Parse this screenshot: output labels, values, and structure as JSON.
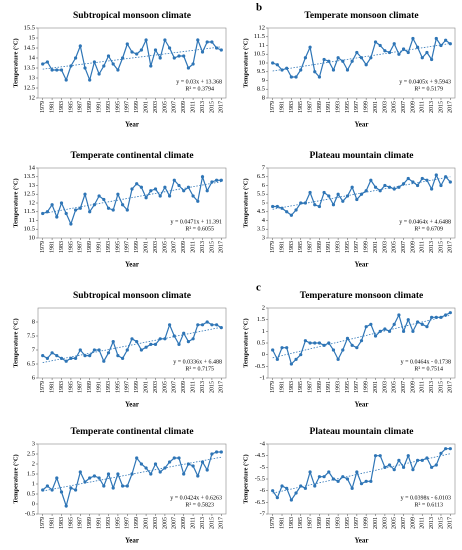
{
  "chart_data": [
    {
      "type": "line",
      "title": "Subtropical monsoon climate",
      "y_label": "Temperature (°C)",
      "x_label": "Year",
      "color": "#2e75b6",
      "x": [
        1979,
        1980,
        1981,
        1982,
        1983,
        1984,
        1985,
        1986,
        1987,
        1988,
        1989,
        1990,
        1991,
        1992,
        1993,
        1994,
        1995,
        1996,
        1997,
        1998,
        1999,
        2000,
        2001,
        2002,
        2003,
        2004,
        2005,
        2006,
        2007,
        2008,
        2009,
        2010,
        2011,
        2012,
        2013,
        2014,
        2015,
        2016,
        2017
      ],
      "values": [
        13.7,
        13.8,
        13.4,
        13.4,
        13.4,
        12.9,
        13.6,
        14.0,
        14.6,
        13.5,
        12.9,
        13.8,
        13.2,
        13.6,
        14.1,
        13.7,
        13.4,
        14.0,
        14.7,
        14.3,
        14.2,
        14.4,
        14.9,
        13.6,
        14.4,
        14.0,
        14.9,
        14.5,
        14.0,
        14.1,
        14.1,
        13.5,
        13.7,
        14.9,
        14.3,
        14.8,
        14.8,
        14.5,
        14.4
      ],
      "xlim": [
        1978,
        2018
      ],
      "xticks": [
        1979,
        1981,
        1983,
        1985,
        1987,
        1989,
        1991,
        1993,
        1995,
        1997,
        1999,
        2001,
        2003,
        2005,
        2007,
        2009,
        2011,
        2013,
        2015,
        2017
      ],
      "ylim": [
        12,
        15.5
      ],
      "yticks": [
        12,
        12.5,
        13,
        13.5,
        14,
        14.5,
        15,
        15.5
      ],
      "trend_equation": "y = 0.03x + 13.368",
      "r_squared": "R² = 0.3794"
    },
    {
      "type": "line",
      "panel_label": "b",
      "title": "Temperate monsoon climate",
      "y_label": "Temperature (°C)",
      "x_label": "Year",
      "color": "#2e75b6",
      "x": [
        1979,
        1980,
        1981,
        1982,
        1983,
        1984,
        1985,
        1986,
        1987,
        1988,
        1989,
        1990,
        1991,
        1992,
        1993,
        1994,
        1995,
        1996,
        1997,
        1998,
        1999,
        2000,
        2001,
        2002,
        2003,
        2004,
        2005,
        2006,
        2007,
        2008,
        2009,
        2010,
        2011,
        2012,
        2013,
        2014,
        2015,
        2016,
        2017
      ],
      "values": [
        10.0,
        9.9,
        9.6,
        9.7,
        9.2,
        9.2,
        9.6,
        10.3,
        10.9,
        9.5,
        9.2,
        10.2,
        10.1,
        9.6,
        10.3,
        10.1,
        9.6,
        10.1,
        10.6,
        10.3,
        9.9,
        10.3,
        11.2,
        11.0,
        10.7,
        10.6,
        11.1,
        10.5,
        10.8,
        10.6,
        11.4,
        10.9,
        10.3,
        10.6,
        10.2,
        11.4,
        11.0,
        11.3,
        11.1
      ],
      "xlim": [
        1978,
        2018
      ],
      "xticks": [
        1979,
        1981,
        1983,
        1985,
        1987,
        1989,
        1991,
        1993,
        1995,
        1997,
        1999,
        2001,
        2003,
        2005,
        2007,
        2009,
        2011,
        2013,
        2015,
        2017
      ],
      "ylim": [
        8,
        12
      ],
      "yticks": [
        8,
        8.5,
        9,
        9.5,
        10,
        10.5,
        11,
        11.5,
        12
      ],
      "trend_equation": "y = 0.0405x + 9.5943",
      "r_squared": "R² = 0.5179"
    },
    {
      "type": "line",
      "title": "Temperate continental climate",
      "y_label": "Temperature (°C)",
      "x_label": "Year",
      "color": "#2e75b6",
      "x": [
        1979,
        1980,
        1981,
        1982,
        1983,
        1984,
        1985,
        1986,
        1987,
        1988,
        1989,
        1990,
        1991,
        1992,
        1993,
        1994,
        1995,
        1996,
        1997,
        1998,
        1999,
        2000,
        2001,
        2002,
        2003,
        2004,
        2005,
        2006,
        2007,
        2008,
        2009,
        2010,
        2011,
        2012,
        2013,
        2014,
        2015,
        2016,
        2017
      ],
      "values": [
        11.4,
        11.5,
        11.9,
        11.2,
        12.0,
        11.4,
        10.8,
        11.6,
        11.7,
        12.5,
        11.5,
        11.9,
        12.4,
        12.2,
        11.7,
        11.6,
        12.5,
        11.9,
        11.6,
        12.8,
        13.1,
        12.9,
        12.3,
        12.7,
        12.8,
        12.4,
        12.9,
        12.4,
        13.3,
        13.0,
        12.7,
        12.9,
        12.4,
        12.1,
        13.5,
        12.7,
        13.2,
        13.3,
        13.3
      ],
      "xlim": [
        1978,
        2018
      ],
      "xticks": [
        1979,
        1981,
        1983,
        1985,
        1987,
        1989,
        1991,
        1993,
        1995,
        1997,
        1999,
        2001,
        2003,
        2005,
        2007,
        2009,
        2011,
        2013,
        2015,
        2017
      ],
      "ylim": [
        10,
        14
      ],
      "yticks": [
        10,
        10.5,
        11,
        11.5,
        12,
        12.5,
        13,
        13.5,
        14
      ],
      "trend_equation": "y = 0.0471x + 11.391",
      "r_squared": "R² = 0.6055"
    },
    {
      "type": "line",
      "title": "Plateau mountain climate",
      "y_label": "Temperature (°C)",
      "x_label": "Year",
      "color": "#2e75b6",
      "x": [
        1979,
        1980,
        1981,
        1982,
        1983,
        1984,
        1985,
        1986,
        1987,
        1988,
        1989,
        1990,
        1991,
        1992,
        1993,
        1994,
        1995,
        1996,
        1997,
        1998,
        1999,
        2000,
        2001,
        2002,
        2003,
        2004,
        2005,
        2006,
        2007,
        2008,
        2009,
        2010,
        2011,
        2012,
        2013,
        2014,
        2015,
        2016,
        2017
      ],
      "values": [
        4.8,
        4.8,
        4.7,
        4.5,
        4.3,
        4.6,
        5.0,
        5.0,
        5.6,
        4.9,
        4.8,
        5.6,
        5.4,
        4.9,
        5.5,
        5.1,
        5.4,
        5.9,
        5.2,
        5.5,
        5.7,
        6.3,
        5.9,
        5.7,
        6.0,
        5.9,
        5.8,
        5.9,
        6.1,
        6.4,
        6.2,
        6.0,
        6.4,
        6.3,
        5.8,
        6.6,
        6.0,
        6.5,
        6.2
      ],
      "xlim": [
        1978,
        2018
      ],
      "xticks": [
        1979,
        1981,
        1983,
        1985,
        1987,
        1989,
        1991,
        1993,
        1995,
        1997,
        1999,
        2001,
        2003,
        2005,
        2007,
        2009,
        2011,
        2013,
        2015,
        2017
      ],
      "ylim": [
        3,
        7
      ],
      "yticks": [
        3,
        3.5,
        4,
        4.5,
        5,
        5.5,
        6,
        6.5,
        7
      ],
      "trend_equation": "y = 0.0464x + 4.6488",
      "r_squared": "R² = 0.6709"
    },
    {
      "type": "line",
      "title": "Subtropical monsoon climate",
      "y_label": "Temperature (°C)",
      "x_label": "Year",
      "color": "#2e75b6",
      "x": [
        1979,
        1980,
        1981,
        1982,
        1983,
        1984,
        1985,
        1986,
        1987,
        1988,
        1989,
        1990,
        1991,
        1992,
        1993,
        1994,
        1995,
        1996,
        1997,
        1998,
        1999,
        2000,
        2001,
        2002,
        2003,
        2004,
        2005,
        2006,
        2007,
        2008,
        2009,
        2010,
        2011,
        2012,
        2013,
        2014,
        2015,
        2016,
        2017
      ],
      "values": [
        6.8,
        6.7,
        6.9,
        6.8,
        6.7,
        6.6,
        6.7,
        6.7,
        7.0,
        6.8,
        6.8,
        7.0,
        7.0,
        6.6,
        6.9,
        7.3,
        6.8,
        6.7,
        7.0,
        7.4,
        7.3,
        7.0,
        7.1,
        7.2,
        7.2,
        7.4,
        7.4,
        7.9,
        7.5,
        7.2,
        7.6,
        7.3,
        7.4,
        7.9,
        7.9,
        8.0,
        7.9,
        7.9,
        7.8
      ],
      "xlim": [
        1978,
        2018
      ],
      "xticks": [
        1979,
        1981,
        1983,
        1985,
        1987,
        1989,
        1991,
        1993,
        1995,
        1997,
        1999,
        2001,
        2003,
        2005,
        2007,
        2009,
        2011,
        2013,
        2015,
        2017
      ],
      "ylim": [
        6,
        8.5
      ],
      "yticks": [
        6,
        6.5,
        7,
        7.5,
        8
      ],
      "trend_equation": "y = 0.0336x + 6.488",
      "r_squared": "R² = 0.7175"
    },
    {
      "type": "line",
      "panel_label": "c",
      "title": "Temperature monsoon climate",
      "y_label": "Temperature (°C)",
      "x_label": "Year",
      "color": "#2e75b6",
      "x": [
        1979,
        1980,
        1981,
        1982,
        1983,
        1984,
        1985,
        1986,
        1987,
        1988,
        1989,
        1990,
        1991,
        1992,
        1993,
        1994,
        1995,
        1996,
        1997,
        1998,
        1999,
        2000,
        2001,
        2002,
        2003,
        2004,
        2005,
        2006,
        2007,
        2008,
        2009,
        2010,
        2011,
        2012,
        2013,
        2014,
        2015,
        2016,
        2017
      ],
      "values": [
        0.2,
        -0.2,
        0.3,
        0.3,
        -0.4,
        -0.2,
        0.0,
        0.6,
        0.5,
        0.5,
        0.5,
        0.4,
        0.5,
        0.2,
        -0.2,
        0.2,
        0.7,
        0.4,
        0.3,
        0.6,
        1.2,
        1.3,
        0.8,
        1.0,
        1.1,
        1.0,
        1.3,
        1.7,
        1.0,
        1.5,
        1.0,
        1.4,
        1.3,
        1.2,
        1.6,
        1.6,
        1.6,
        1.7,
        1.8
      ],
      "xlim": [
        1978,
        2018
      ],
      "xticks": [
        1979,
        1981,
        1983,
        1985,
        1987,
        1989,
        1991,
        1993,
        1995,
        1997,
        1999,
        2001,
        2003,
        2005,
        2007,
        2009,
        2011,
        2013,
        2015,
        2017
      ],
      "ylim": [
        -1,
        2
      ],
      "yticks": [
        -1,
        -0.5,
        0,
        0.5,
        1,
        1.5,
        2
      ],
      "trend_equation": "y = 0.0464x - 0.1738",
      "r_squared": "R² = 0.7514"
    },
    {
      "type": "line",
      "title": "Temperate continental climate",
      "y_label": "Temperature (°C)",
      "x_label": "Year",
      "color": "#2e75b6",
      "x": [
        1979,
        1980,
        1981,
        1982,
        1983,
        1984,
        1985,
        1986,
        1987,
        1988,
        1989,
        1990,
        1991,
        1992,
        1993,
        1994,
        1995,
        1996,
        1997,
        1998,
        1999,
        2000,
        2001,
        2002,
        2003,
        2004,
        2005,
        2006,
        2007,
        2008,
        2009,
        2010,
        2011,
        2012,
        2013,
        2014,
        2015,
        2016,
        2017
      ],
      "values": [
        0.7,
        0.9,
        0.7,
        1.3,
        0.6,
        -0.1,
        0.8,
        0.7,
        1.6,
        1.1,
        1.3,
        1.4,
        1.3,
        0.9,
        1.5,
        0.8,
        1.5,
        0.9,
        0.9,
        1.5,
        2.3,
        2.0,
        1.8,
        1.5,
        2.0,
        1.6,
        1.8,
        2.1,
        2.3,
        2.3,
        1.5,
        2.0,
        1.9,
        1.4,
        2.1,
        1.7,
        2.5,
        2.6,
        2.6
      ],
      "xlim": [
        1978,
        2018
      ],
      "xticks": [
        1979,
        1981,
        1983,
        1985,
        1987,
        1989,
        1991,
        1993,
        1995,
        1997,
        1999,
        2001,
        2003,
        2005,
        2007,
        2009,
        2011,
        2013,
        2015,
        2017
      ],
      "ylim": [
        -0.5,
        3
      ],
      "yticks": [
        -0.5,
        0,
        0.5,
        1,
        1.5,
        2,
        2.5,
        3
      ],
      "trend_equation": "y = 0.0424x + 0.6263",
      "r_squared": "R² = 0.5823"
    },
    {
      "type": "line",
      "title": "Plateau mountain climate",
      "y_label": "Temperature (°C)",
      "x_label": "Year",
      "color": "#2e75b6",
      "x": [
        1979,
        1980,
        1981,
        1982,
        1983,
        1984,
        1985,
        1986,
        1987,
        1988,
        1989,
        1990,
        1991,
        1992,
        1993,
        1994,
        1995,
        1996,
        1997,
        1998,
        1999,
        2000,
        2001,
        2002,
        2003,
        2004,
        2005,
        2006,
        2007,
        2008,
        2009,
        2010,
        2011,
        2012,
        2013,
        2014,
        2015,
        2016,
        2017
      ],
      "values": [
        -6.0,
        -6.3,
        -5.8,
        -5.9,
        -6.4,
        -6.1,
        -5.8,
        -5.9,
        -5.2,
        -5.8,
        -5.4,
        -5.4,
        -5.2,
        -5.5,
        -5.6,
        -5.4,
        -5.5,
        -5.9,
        -5.2,
        -5.7,
        -5.6,
        -5.6,
        -4.5,
        -4.5,
        -5.0,
        -4.9,
        -5.1,
        -4.7,
        -5.0,
        -4.5,
        -5.1,
        -4.7,
        -4.7,
        -4.6,
        -5.0,
        -4.9,
        -4.4,
        -4.2,
        -4.2
      ],
      "xlim": [
        1978,
        2018
      ],
      "xticks": [
        1979,
        1981,
        1983,
        1985,
        1987,
        1989,
        1991,
        1993,
        1995,
        1997,
        1999,
        2001,
        2003,
        2005,
        2007,
        2009,
        2011,
        2013,
        2015,
        2017
      ],
      "ylim": [
        -7,
        -4
      ],
      "yticks": [
        -7,
        -6.5,
        -6,
        -5.5,
        -5,
        -4.5,
        -4
      ],
      "trend_equation": "y = 0.0398x - 6.0103",
      "r_squared": "R² = 0.6113"
    }
  ]
}
